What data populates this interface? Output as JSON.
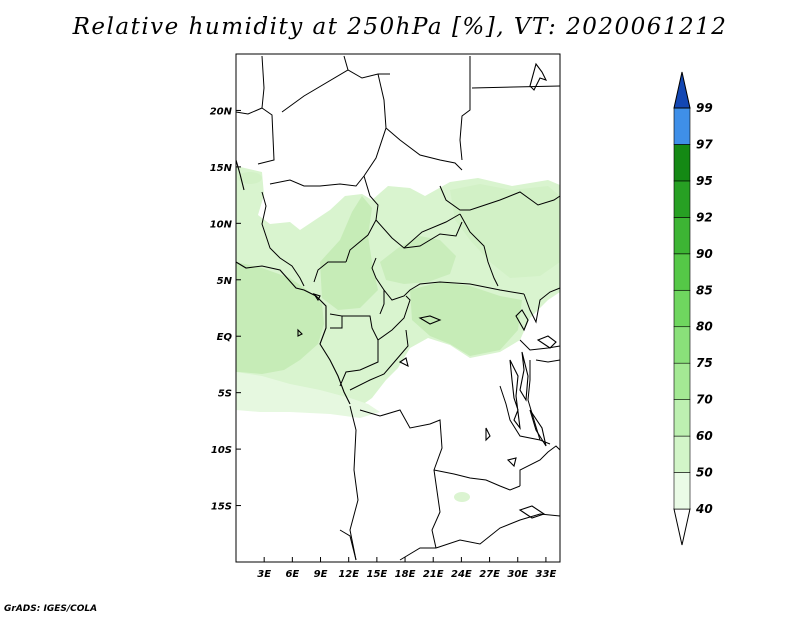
{
  "title": "Relative humidity at 250hPa [%], VT: 2020061212",
  "credit": "GrADS: IGES/COLA",
  "map": {
    "lon_range": [
      0,
      34.5
    ],
    "lat_range": [
      -20,
      25
    ],
    "lon_ticks": [
      {
        "value": 3,
        "label": "3E"
      },
      {
        "value": 6,
        "label": "6E"
      },
      {
        "value": 9,
        "label": "9E"
      },
      {
        "value": 12,
        "label": "12E"
      },
      {
        "value": 15,
        "label": "15E"
      },
      {
        "value": 18,
        "label": "18E"
      },
      {
        "value": 21,
        "label": "21E"
      },
      {
        "value": 24,
        "label": "24E"
      },
      {
        "value": 27,
        "label": "27E"
      },
      {
        "value": 30,
        "label": "30E"
      },
      {
        "value": 33,
        "label": "33E"
      }
    ],
    "lat_ticks": [
      {
        "value": 20,
        "label": "20N"
      },
      {
        "value": 15,
        "label": "15N"
      },
      {
        "value": 10,
        "label": "10N"
      },
      {
        "value": 5,
        "label": "5N"
      },
      {
        "value": 0,
        "label": "EQ"
      },
      {
        "value": -5,
        "label": "5S"
      },
      {
        "value": -10,
        "label": "10S"
      },
      {
        "value": -15,
        "label": "15S"
      }
    ]
  },
  "colorbar": {
    "levels": [
      "40",
      "50",
      "60",
      "70",
      "75",
      "80",
      "85",
      "90",
      "92",
      "95",
      "97",
      "99"
    ],
    "colors": [
      "#eafbe6",
      "#d2f5c8",
      "#bdf0b1",
      "#a4e994",
      "#8ae07a",
      "#6fd65f",
      "#55c847",
      "#3db534",
      "#27a023",
      "#148914",
      "#3f8fe8",
      "#2265cf",
      "#1347b3"
    ]
  },
  "colors": {
    "humid_light": "#e6f8e0",
    "humid_mid": "#cfefc3",
    "humid_dark": "#b6e6a5",
    "border": "#000000"
  }
}
